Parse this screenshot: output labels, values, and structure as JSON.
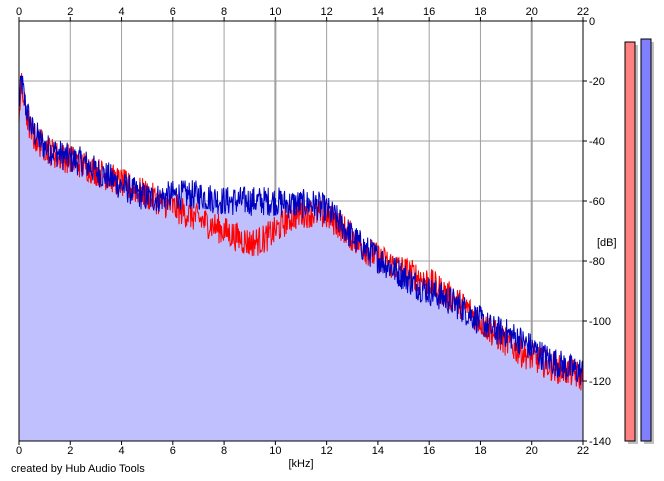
{
  "chart_data": {
    "type": "line",
    "xlabel": "[kHz]",
    "ylabel": "[dB]",
    "xlim": [
      0,
      22
    ],
    "ylim": [
      -140,
      0
    ],
    "x_ticks": [
      0,
      2,
      4,
      6,
      8,
      10,
      12,
      14,
      16,
      18,
      20,
      22
    ],
    "y_ticks": [
      0,
      -20,
      -40,
      -60,
      -80,
      -100,
      -120,
      -140
    ],
    "grid": true,
    "fill": "area under blue spectrum",
    "series": [
      {
        "color": "#ff0000",
        "x": [
          0,
          0.1,
          0.25,
          0.5,
          1,
          1.5,
          2,
          2.5,
          3,
          3.5,
          4,
          4.5,
          5,
          5.5,
          6,
          6.5,
          7,
          7.5,
          8,
          8.5,
          9,
          9.5,
          10,
          10.5,
          11,
          11.5,
          12,
          12.5,
          13,
          13.5,
          14,
          14.5,
          15,
          15.5,
          16,
          16.5,
          17,
          17.5,
          18,
          18.5,
          19,
          19.5,
          20,
          20.5,
          21,
          21.5,
          22
        ],
        "y": [
          -30,
          -22,
          -30,
          -38,
          -42,
          -45,
          -46,
          -48,
          -50,
          -52,
          -54,
          -56,
          -58,
          -60,
          -62,
          -64,
          -66,
          -68,
          -70,
          -72,
          -74,
          -73,
          -70,
          -66,
          -64,
          -64,
          -65,
          -68,
          -72,
          -76,
          -79,
          -81,
          -83,
          -85,
          -87,
          -90,
          -93,
          -96,
          -100,
          -104,
          -107,
          -110,
          -112,
          -114,
          -116,
          -117,
          -119
        ]
      },
      {
        "color": "#0000c0",
        "x": [
          0,
          0.1,
          0.25,
          0.5,
          1,
          1.5,
          2,
          2.5,
          3,
          3.5,
          4,
          4.5,
          5,
          5.5,
          6,
          6.5,
          7,
          7.5,
          8,
          8.5,
          9,
          9.5,
          10,
          10.5,
          11,
          11.5,
          12,
          12.5,
          13,
          13.5,
          14,
          14.5,
          15,
          15.5,
          16,
          16.5,
          17,
          17.5,
          18,
          18.5,
          19,
          19.5,
          20,
          20.5,
          21,
          21.5,
          22
        ],
        "y": [
          -28,
          -20,
          -28,
          -36,
          -42,
          -44,
          -46,
          -47,
          -50,
          -52,
          -55,
          -57,
          -59,
          -59,
          -58,
          -58,
          -58,
          -59,
          -60,
          -60,
          -60,
          -60,
          -60,
          -61,
          -61,
          -61,
          -63,
          -67,
          -72,
          -76,
          -79,
          -82,
          -85,
          -88,
          -90,
          -92,
          -94,
          -97,
          -100,
          -103,
          -104,
          -106,
          -109,
          -112,
          -114,
          -116,
          -117
        ]
      }
    ],
    "level_meters": [
      {
        "color": "#ff8080",
        "level_db": -7
      },
      {
        "color": "#8080ff",
        "level_db": -6
      }
    ]
  },
  "credit": "created by Hub Audio Tools"
}
